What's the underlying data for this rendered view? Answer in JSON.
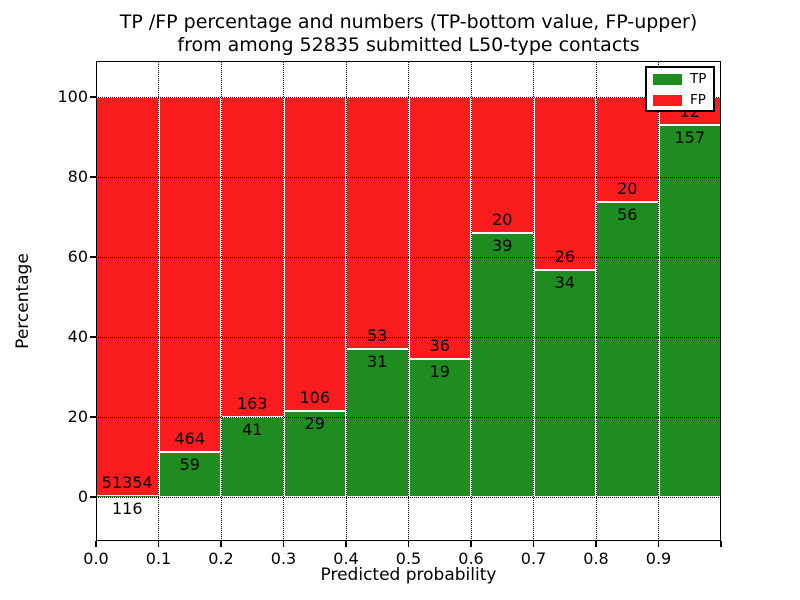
{
  "figure": {
    "title_line1": "TP /FP percentage and numbers (TP-bottom value, FP-upper)",
    "title_line2": "from among 52835 submitted L50-type contacts"
  },
  "axes": {
    "xlabel": "Predicted probability",
    "ylabel": "Percentage",
    "x_tick_labels": [
      "0.0",
      "0.1",
      "0.2",
      "0.3",
      "0.4",
      "0.5",
      "0.6",
      "0.7",
      "0.8",
      "0.9"
    ],
    "x_tick_values": [
      0.0,
      0.1,
      0.2,
      0.3,
      0.4,
      0.5,
      0.6,
      0.7,
      0.8,
      0.9
    ],
    "y_tick_labels": [
      "0",
      "20",
      "40",
      "60",
      "80",
      "100"
    ],
    "y_tick_values": [
      0,
      20,
      40,
      60,
      80,
      100
    ],
    "xlim": [
      0.0,
      1.0
    ],
    "ylim": [
      -11,
      109
    ],
    "grid": "dotted-black"
  },
  "legend": {
    "position": "upper-right",
    "entries": [
      {
        "label": "TP",
        "color": "#1e8c1e"
      },
      {
        "label": "FP",
        "color": "#fb1d1d"
      }
    ]
  },
  "colors": {
    "tp": "#1e8c1e",
    "fp": "#fb1d1d",
    "bar_edge": "#ffffff",
    "grid": "#000000",
    "background": "#ffffff"
  },
  "chart_data": {
    "type": "bar",
    "stacked": true,
    "normalized": "percent-of-bin-total",
    "title": "TP /FP percentage and numbers (TP-bottom value, FP-upper) from among 52835 submitted L50-type contacts",
    "xlabel": "Predicted probability",
    "ylabel": "Percentage",
    "ylim": [
      -11,
      109
    ],
    "xlim": [
      0.0,
      1.0
    ],
    "grid": true,
    "legend_position": "upper-right",
    "bin_start": [
      0.0,
      0.1,
      0.2,
      0.3,
      0.4,
      0.5,
      0.6,
      0.7,
      0.8,
      0.9
    ],
    "bin_width": 0.1,
    "series": [
      {
        "name": "TP",
        "color": "#1e8c1e",
        "counts": [
          116,
          59,
          41,
          29,
          31,
          19,
          39,
          34,
          56,
          157
        ]
      },
      {
        "name": "FP",
        "color": "#fb1d1d",
        "counts": [
          51354,
          464,
          163,
          106,
          53,
          36,
          20,
          26,
          20,
          12
        ]
      }
    ],
    "tp_percent": [
      0.23,
      11.28,
      20.1,
      21.48,
      36.9,
      34.55,
      66.1,
      56.67,
      73.68,
      92.9
    ],
    "total_contacts": 52835
  }
}
